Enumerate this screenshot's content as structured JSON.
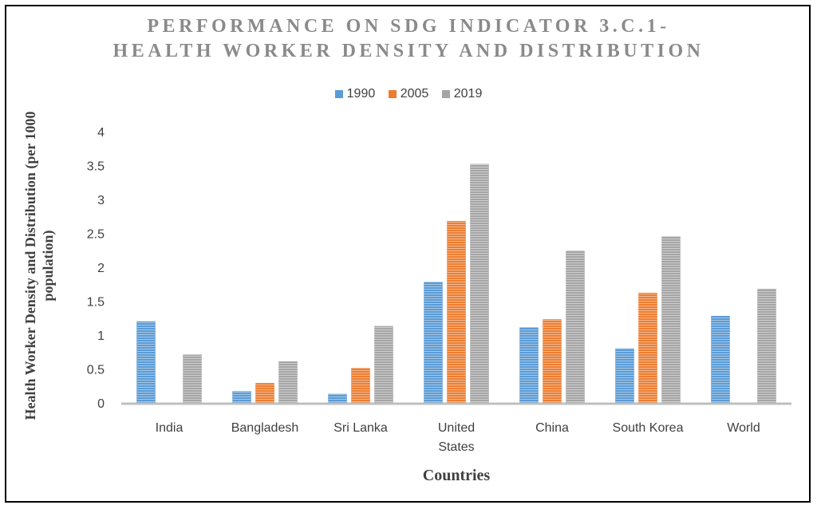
{
  "chart_data": {
    "type": "bar",
    "title_lines": [
      "PERFORMANCE ON SDG INDICATOR 3.C.1-",
      "HEALTH WORKER DENSITY AND DISTRIBUTION"
    ],
    "xlabel": "Countries",
    "ylabel": "Health Worker Density and Distribution (per 1000 population)",
    "ylim": [
      0,
      4
    ],
    "yticks": [
      "0",
      "0.5",
      "1",
      "1.5",
      "2",
      "2.5",
      "3",
      "3.5",
      "4"
    ],
    "categories": [
      [
        "India"
      ],
      [
        "Bangladesh"
      ],
      [
        "Sri Lanka"
      ],
      [
        "United",
        "States"
      ],
      [
        "China"
      ],
      [
        "South Korea"
      ],
      [
        "World"
      ]
    ],
    "series": [
      {
        "name": "1990",
        "color": "#5b9bd5",
        "values": [
          1.2,
          0.17,
          0.13,
          1.78,
          1.11,
          0.8,
          1.28
        ]
      },
      {
        "name": "2005",
        "color": "#ed7d31",
        "values": [
          null,
          0.29,
          0.51,
          2.68,
          1.23,
          1.62,
          null
        ]
      },
      {
        "name": "2019",
        "color": "#a5a5a5",
        "values": [
          0.71,
          0.61,
          1.13,
          3.52,
          2.24,
          2.45,
          1.68
        ]
      }
    ],
    "legend_position": "top",
    "grid": false
  }
}
